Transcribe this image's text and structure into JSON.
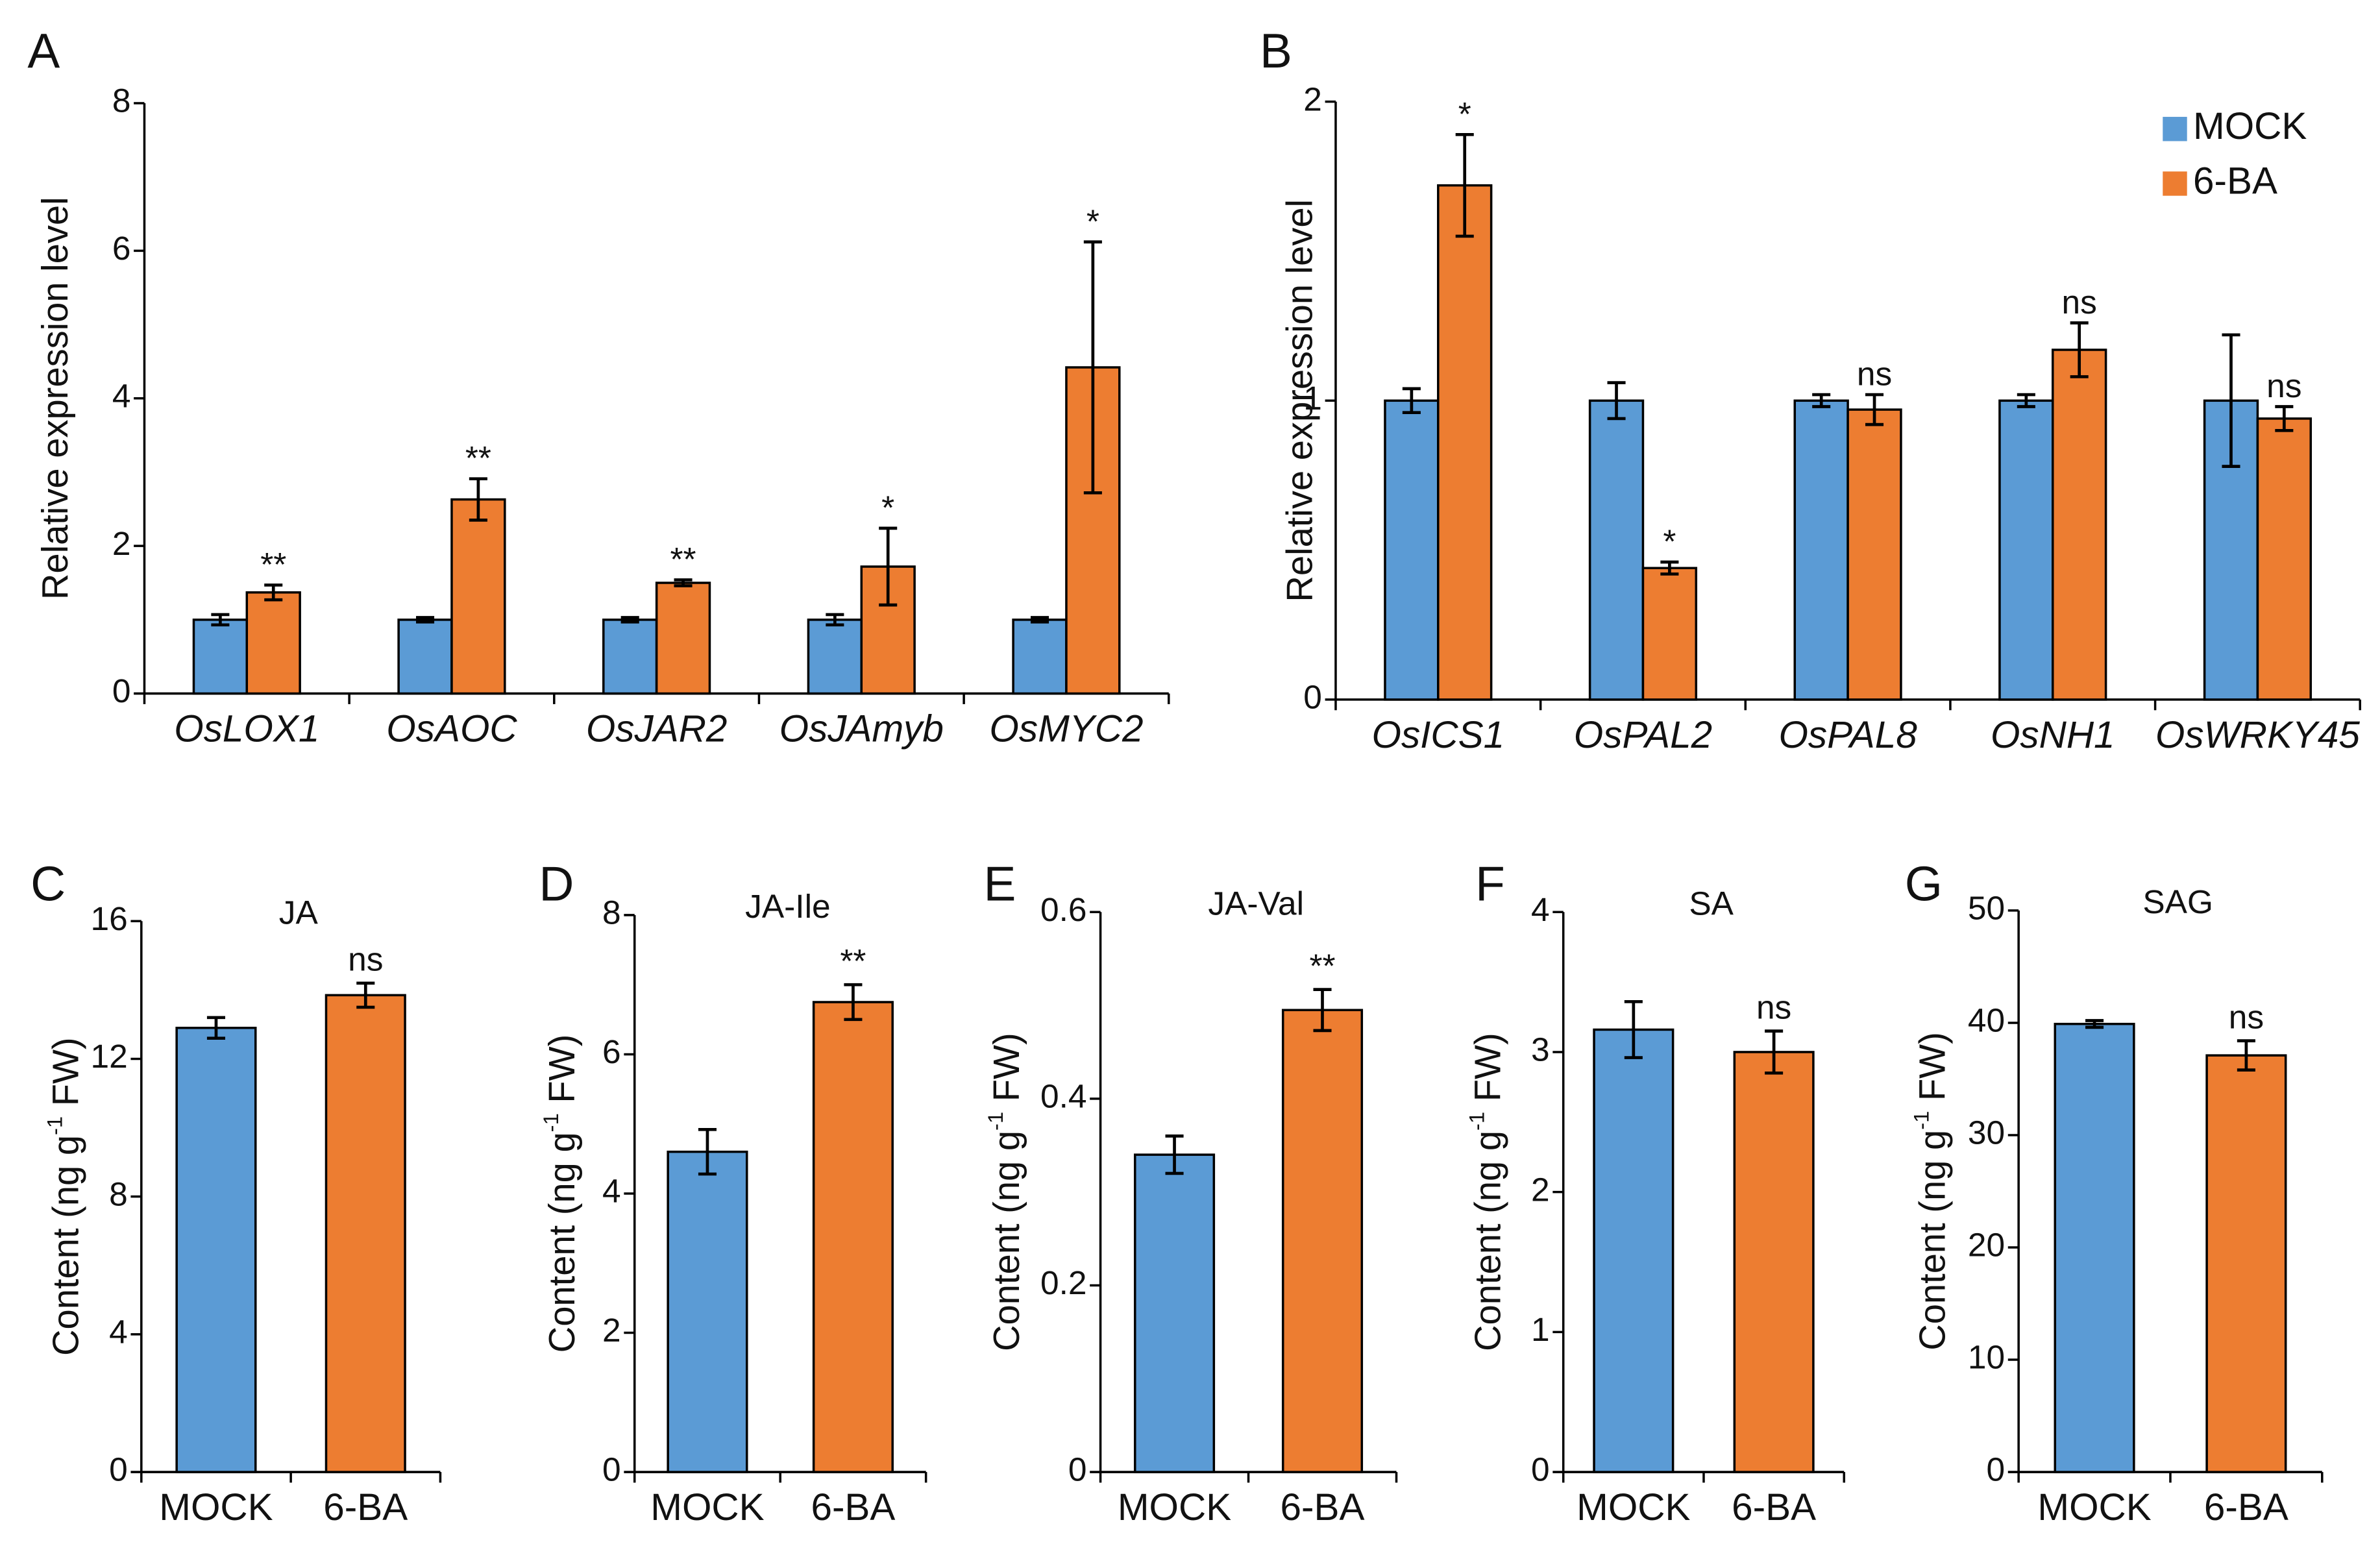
{
  "chart_data": [
    {
      "type": "bar",
      "panel": "A",
      "ylabel": "Relative expression level",
      "categories": [
        "OsLOX1",
        "OsAOC",
        "OsJAR2",
        "OsJAmyb",
        "OsMYC2"
      ],
      "series": [
        {
          "color": "#5b9bd5",
          "values": [
            1.0,
            1.0,
            1.0,
            1.0,
            1.0
          ],
          "errors": [
            0.07,
            0.03,
            0.03,
            0.07,
            0.03
          ]
        },
        {
          "color": "#ed7d31",
          "values": [
            1.37,
            2.63,
            1.5,
            1.72,
            4.42
          ],
          "errors": [
            0.1,
            0.28,
            0.04,
            0.52,
            1.7
          ]
        }
      ],
      "significance": [
        "**",
        "**",
        "**",
        "*",
        "*"
      ],
      "ylim": [
        0,
        8
      ],
      "yticks": [
        0,
        2,
        4,
        6,
        8
      ]
    },
    {
      "type": "bar",
      "panel": "B",
      "ylabel": "Relative expression level",
      "categories": [
        "OsICS1",
        "OsPAL2",
        "OsPAL8",
        "OsNH1",
        "OsWRKY45"
      ],
      "series": [
        {
          "name": "MOCK",
          "color": "#5b9bd5",
          "values": [
            1.0,
            1.0,
            1.0,
            1.0,
            1.0
          ],
          "errors": [
            0.04,
            0.06,
            0.02,
            0.02,
            0.22
          ]
        },
        {
          "name": "6-BA",
          "color": "#ed7d31",
          "values": [
            1.72,
            0.44,
            0.97,
            1.17,
            0.94
          ],
          "errors": [
            0.17,
            0.02,
            0.05,
            0.09,
            0.04
          ]
        }
      ],
      "significance": [
        "*",
        "*",
        "ns",
        "ns",
        "ns"
      ],
      "legend": "upper right",
      "ylim": [
        0,
        2
      ],
      "yticks": [
        0,
        1,
        2
      ]
    },
    {
      "type": "bar",
      "panel": "C",
      "title": "JA",
      "ylabel": [
        "Content (ng g",
        "-1",
        " FW)"
      ],
      "categories": [
        "MOCK",
        "6-BA"
      ],
      "values": [
        12.9,
        13.85
      ],
      "errors": [
        0.3,
        0.35
      ],
      "colors": [
        "#5b9bd5",
        "#ed7d31"
      ],
      "significance": [
        null,
        "ns"
      ],
      "ylim": [
        0,
        16
      ],
      "yticks": [
        0,
        4,
        8,
        12,
        16
      ]
    },
    {
      "type": "bar",
      "panel": "D",
      "title": "JA-Ile",
      "ylabel": [
        "Content (ng g",
        "-1",
        " FW)"
      ],
      "categories": [
        "MOCK",
        "6-BA"
      ],
      "values": [
        4.6,
        6.75
      ],
      "errors": [
        0.32,
        0.25
      ],
      "colors": [
        "#5b9bd5",
        "#ed7d31"
      ],
      "significance": [
        null,
        "**"
      ],
      "ylim": [
        0,
        8
      ],
      "yticks": [
        0,
        2,
        4,
        6,
        8
      ]
    },
    {
      "type": "bar",
      "panel": "E",
      "title": "JA-Val",
      "ylabel": [
        "Content (ng g",
        "-1",
        " FW)"
      ],
      "categories": [
        "MOCK",
        "6-BA"
      ],
      "values": [
        0.34,
        0.495
      ],
      "errors": [
        0.02,
        0.022
      ],
      "colors": [
        "#5b9bd5",
        "#ed7d31"
      ],
      "significance": [
        null,
        "**"
      ],
      "ylim": [
        0,
        0.6
      ],
      "yticks": [
        0,
        0.2,
        0.4,
        0.6
      ]
    },
    {
      "type": "bar",
      "panel": "F",
      "title": "SA",
      "ylabel": [
        "Content (ng g",
        "-1",
        " FW)"
      ],
      "categories": [
        "MOCK",
        "6-BA"
      ],
      "values": [
        3.16,
        3.0
      ],
      "errors": [
        0.2,
        0.15
      ],
      "colors": [
        "#5b9bd5",
        "#ed7d31"
      ],
      "significance": [
        null,
        "ns"
      ],
      "ylim": [
        0,
        4
      ],
      "yticks": [
        0,
        1,
        2,
        3,
        4
      ]
    },
    {
      "type": "bar",
      "panel": "G",
      "title": "SAG",
      "ylabel": [
        "Content (ng g",
        "-1",
        " FW)"
      ],
      "categories": [
        "MOCK",
        "6-BA"
      ],
      "values": [
        39.9,
        37.1
      ],
      "errors": [
        0.3,
        1.3
      ],
      "colors": [
        "#5b9bd5",
        "#ed7d31"
      ],
      "significance": [
        null,
        "ns"
      ],
      "ylim": [
        0,
        50
      ],
      "yticks": [
        0,
        10,
        20,
        30,
        40,
        50
      ]
    }
  ]
}
